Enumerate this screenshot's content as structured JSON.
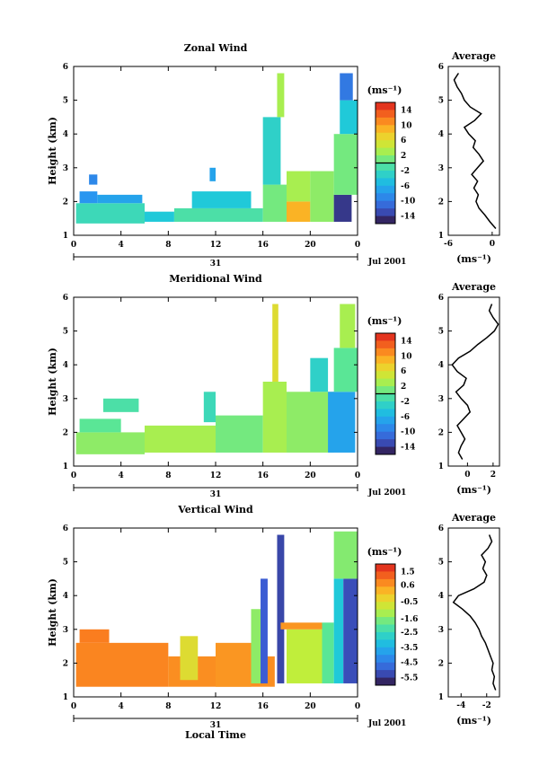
{
  "figure": {
    "x_axis_label": "Local Time",
    "date_label": "Jul 2001",
    "day_label": "31",
    "colorbar_unit": "(ms⁻¹)",
    "avg_unit": "(ms⁻¹)"
  },
  "chart_data": [
    {
      "type": "heatmap",
      "title": "Zonal Wind",
      "xlabel": "",
      "ylabel": "Height (km)",
      "x_ticks": [
        "0",
        "4",
        "8",
        "12",
        "16",
        "20",
        "0"
      ],
      "xlim_hours": [
        0,
        24
      ],
      "y_ticks": [
        "1",
        "2",
        "3",
        "4",
        "5",
        "6"
      ],
      "ylim": [
        1,
        6
      ],
      "colorbar_ticks": [
        "14",
        "10",
        "6",
        "2",
        "-2",
        "-6",
        "-10",
        "-14"
      ],
      "colorbar_range": [
        -16,
        16
      ],
      "colorbar_zero_line": 0,
      "cells": [
        {
          "x0": 0.2,
          "x1": 6.0,
          "y0": 1.35,
          "y1": 1.95,
          "v": -2
        },
        {
          "x0": 0.5,
          "x1": 2.0,
          "y0": 1.95,
          "y1": 2.3,
          "v": -8
        },
        {
          "x0": 2.0,
          "x1": 5.8,
          "y0": 1.95,
          "y1": 2.2,
          "v": -7
        },
        {
          "x0": 1.3,
          "x1": 2.0,
          "y0": 2.5,
          "y1": 2.8,
          "v": -9
        },
        {
          "x0": 6.0,
          "x1": 8.5,
          "y0": 1.4,
          "y1": 1.7,
          "v": -4
        },
        {
          "x0": 8.5,
          "x1": 16.0,
          "y0": 1.4,
          "y1": 1.8,
          "v": -1
        },
        {
          "x0": 10.0,
          "x1": 15.0,
          "y0": 1.8,
          "y1": 2.3,
          "v": -4
        },
        {
          "x0": 11.5,
          "x1": 12.0,
          "y0": 2.6,
          "y1": 3.0,
          "v": -7
        },
        {
          "x0": 16.0,
          "x1": 18.0,
          "y0": 1.4,
          "y1": 2.5,
          "v": 1
        },
        {
          "x0": 16.0,
          "x1": 17.5,
          "y0": 2.5,
          "y1": 4.5,
          "v": -3
        },
        {
          "x0": 17.2,
          "x1": 17.8,
          "y0": 4.5,
          "y1": 5.8,
          "v": 3
        },
        {
          "x0": 18.0,
          "x1": 20.0,
          "y0": 1.4,
          "y1": 2.0,
          "v": 9
        },
        {
          "x0": 18.0,
          "x1": 20.0,
          "y0": 2.0,
          "y1": 2.9,
          "v": 3
        },
        {
          "x0": 20.0,
          "x1": 22.0,
          "y0": 1.4,
          "y1": 2.9,
          "v": 2
        },
        {
          "x0": 22.0,
          "x1": 23.5,
          "y0": 1.4,
          "y1": 2.2,
          "v": -14
        },
        {
          "x0": 22.0,
          "x1": 24.0,
          "y0": 2.2,
          "y1": 4.0,
          "v": 1
        },
        {
          "x0": 22.5,
          "x1": 24.0,
          "y0": 4.0,
          "y1": 5.0,
          "v": -4
        },
        {
          "x0": 22.5,
          "x1": 23.6,
          "y0": 5.0,
          "y1": 5.8,
          "v": -10
        }
      ],
      "average_profile": {
        "title": "Average",
        "xlim": [
          -6,
          1
        ],
        "x_ticks": [
          "-6",
          "0"
        ],
        "heights": [
          1.2,
          1.4,
          1.6,
          1.8,
          2.0,
          2.2,
          2.4,
          2.6,
          2.8,
          3.0,
          3.2,
          3.4,
          3.6,
          3.8,
          4.0,
          4.2,
          4.4,
          4.6,
          4.8,
          5.0,
          5.2,
          5.4,
          5.6,
          5.8
        ],
        "values": [
          0.5,
          -0.3,
          -1.0,
          -1.8,
          -2.2,
          -1.9,
          -2.5,
          -2.0,
          -2.8,
          -2.0,
          -1.2,
          -1.8,
          -2.6,
          -2.3,
          -3.2,
          -3.8,
          -2.4,
          -1.5,
          -3.0,
          -3.8,
          -4.2,
          -4.8,
          -5.2,
          -4.6
        ]
      }
    },
    {
      "type": "heatmap",
      "title": "Meridional Wind",
      "xlabel": "",
      "ylabel": "Height (km)",
      "x_ticks": [
        "0",
        "4",
        "8",
        "12",
        "16",
        "20",
        "0"
      ],
      "xlim_hours": [
        0,
        24
      ],
      "y_ticks": [
        "1",
        "2",
        "3",
        "4",
        "5",
        "6"
      ],
      "ylim": [
        1,
        6
      ],
      "colorbar_ticks": [
        "14",
        "10",
        "6",
        "2",
        "-2",
        "-6",
        "-10",
        "-14"
      ],
      "colorbar_range": [
        -16,
        16
      ],
      "colorbar_zero_line": 0,
      "cells": [
        {
          "x0": 0.2,
          "x1": 6.0,
          "y0": 1.35,
          "y1": 2.0,
          "v": 2
        },
        {
          "x0": 0.5,
          "x1": 4.0,
          "y0": 2.0,
          "y1": 2.4,
          "v": 0
        },
        {
          "x0": 2.5,
          "x1": 5.5,
          "y0": 2.6,
          "y1": 3.0,
          "v": -1
        },
        {
          "x0": 6.0,
          "x1": 12.0,
          "y0": 1.4,
          "y1": 2.2,
          "v": 3
        },
        {
          "x0": 11.0,
          "x1": 12.0,
          "y0": 2.3,
          "y1": 3.2,
          "v": -2
        },
        {
          "x0": 12.0,
          "x1": 16.0,
          "y0": 1.4,
          "y1": 2.5,
          "v": 1
        },
        {
          "x0": 16.0,
          "x1": 18.0,
          "y0": 1.4,
          "y1": 3.5,
          "v": 3
        },
        {
          "x0": 16.8,
          "x1": 17.3,
          "y0": 3.5,
          "y1": 5.8,
          "v": 6
        },
        {
          "x0": 18.0,
          "x1": 22.0,
          "y0": 1.4,
          "y1": 3.2,
          "v": 2
        },
        {
          "x0": 20.0,
          "x1": 21.5,
          "y0": 3.2,
          "y1": 4.2,
          "v": -3
        },
        {
          "x0": 21.5,
          "x1": 23.8,
          "y0": 1.4,
          "y1": 3.2,
          "v": -7
        },
        {
          "x0": 22.0,
          "x1": 24.0,
          "y0": 3.2,
          "y1": 4.5,
          "v": 0
        },
        {
          "x0": 22.5,
          "x1": 23.8,
          "y0": 4.5,
          "y1": 5.8,
          "v": 3
        }
      ],
      "average_profile": {
        "title": "Average",
        "xlim": [
          -1.5,
          2.5
        ],
        "x_ticks": [
          "0",
          "2"
        ],
        "heights": [
          1.2,
          1.4,
          1.6,
          1.8,
          2.0,
          2.2,
          2.4,
          2.6,
          2.8,
          3.0,
          3.2,
          3.4,
          3.6,
          3.8,
          4.0,
          4.2,
          4.4,
          4.6,
          4.8,
          5.0,
          5.2,
          5.4,
          5.6,
          5.8
        ],
        "values": [
          -0.4,
          -0.7,
          -0.5,
          -0.2,
          -0.5,
          -0.8,
          -0.3,
          0.2,
          0.0,
          -0.5,
          -0.9,
          -0.3,
          -0.1,
          -0.8,
          -1.2,
          -0.7,
          0.2,
          0.8,
          1.5,
          2.1,
          2.4,
          2.0,
          1.7,
          1.9
        ]
      }
    },
    {
      "type": "heatmap",
      "title": "Vertical Wind",
      "xlabel": "Local Time",
      "ylabel": "Height (km)",
      "x_ticks": [
        "0",
        "4",
        "8",
        "12",
        "16",
        "20",
        "0"
      ],
      "xlim_hours": [
        0,
        24
      ],
      "y_ticks": [
        "1",
        "2",
        "3",
        "4",
        "5",
        "6"
      ],
      "ylim": [
        1,
        6
      ],
      "colorbar_ticks": [
        "1.5",
        "0.6",
        "-0.5",
        "-1.6",
        "-2.5",
        "-3.5",
        "-4.5",
        "-5.5"
      ],
      "colorbar_range": [
        -6,
        2
      ],
      "cells": [
        {
          "x0": 0.2,
          "x1": 8.0,
          "y0": 1.3,
          "y1": 2.6,
          "v": 0.8
        },
        {
          "x0": 0.5,
          "x1": 3.0,
          "y0": 2.6,
          "y1": 3.0,
          "v": 0.9
        },
        {
          "x0": 8.0,
          "x1": 17.0,
          "y0": 1.3,
          "y1": 2.2,
          "v": 0.7
        },
        {
          "x0": 9.0,
          "x1": 10.5,
          "y0": 1.5,
          "y1": 2.8,
          "v": -0.5
        },
        {
          "x0": 12.0,
          "x1": 15.0,
          "y0": 1.3,
          "y1": 2.6,
          "v": 0.6
        },
        {
          "x0": 15.0,
          "x1": 16.0,
          "y0": 1.4,
          "y1": 3.6,
          "v": -1.5
        },
        {
          "x0": 15.8,
          "x1": 16.4,
          "y0": 1.4,
          "y1": 4.5,
          "v": -5.0
        },
        {
          "x0": 17.2,
          "x1": 17.8,
          "y0": 1.4,
          "y1": 5.8,
          "v": -5.3
        },
        {
          "x0": 18.0,
          "x1": 21.0,
          "y0": 1.4,
          "y1": 3.0,
          "v": -1.0
        },
        {
          "x0": 17.5,
          "x1": 21.0,
          "y0": 3.0,
          "y1": 3.2,
          "v": 0.6
        },
        {
          "x0": 21.0,
          "x1": 22.0,
          "y0": 1.4,
          "y1": 3.2,
          "v": -2.0
        },
        {
          "x0": 22.0,
          "x1": 22.8,
          "y0": 1.4,
          "y1": 4.5,
          "v": -3.0
        },
        {
          "x0": 22.8,
          "x1": 24.0,
          "y0": 1.4,
          "y1": 4.5,
          "v": -5.2
        },
        {
          "x0": 22.0,
          "x1": 24.0,
          "y0": 4.5,
          "y1": 5.9,
          "v": -1.6
        }
      ],
      "average_profile": {
        "title": "Average",
        "xlim": [
          -5,
          -1
        ],
        "x_ticks": [
          "-4",
          "-2"
        ],
        "heights": [
          1.2,
          1.4,
          1.6,
          1.8,
          2.0,
          2.2,
          2.4,
          2.6,
          2.8,
          3.0,
          3.2,
          3.4,
          3.6,
          3.8,
          4.0,
          4.2,
          4.4,
          4.6,
          4.8,
          5.0,
          5.2,
          5.4,
          5.6,
          5.8
        ],
        "values": [
          -1.3,
          -1.5,
          -1.4,
          -1.6,
          -1.5,
          -1.7,
          -1.9,
          -2.1,
          -2.4,
          -2.6,
          -2.9,
          -3.3,
          -3.9,
          -4.6,
          -4.2,
          -3.0,
          -2.2,
          -2.0,
          -2.3,
          -2.1,
          -2.4,
          -1.9,
          -1.6,
          -1.8
        ]
      }
    }
  ]
}
